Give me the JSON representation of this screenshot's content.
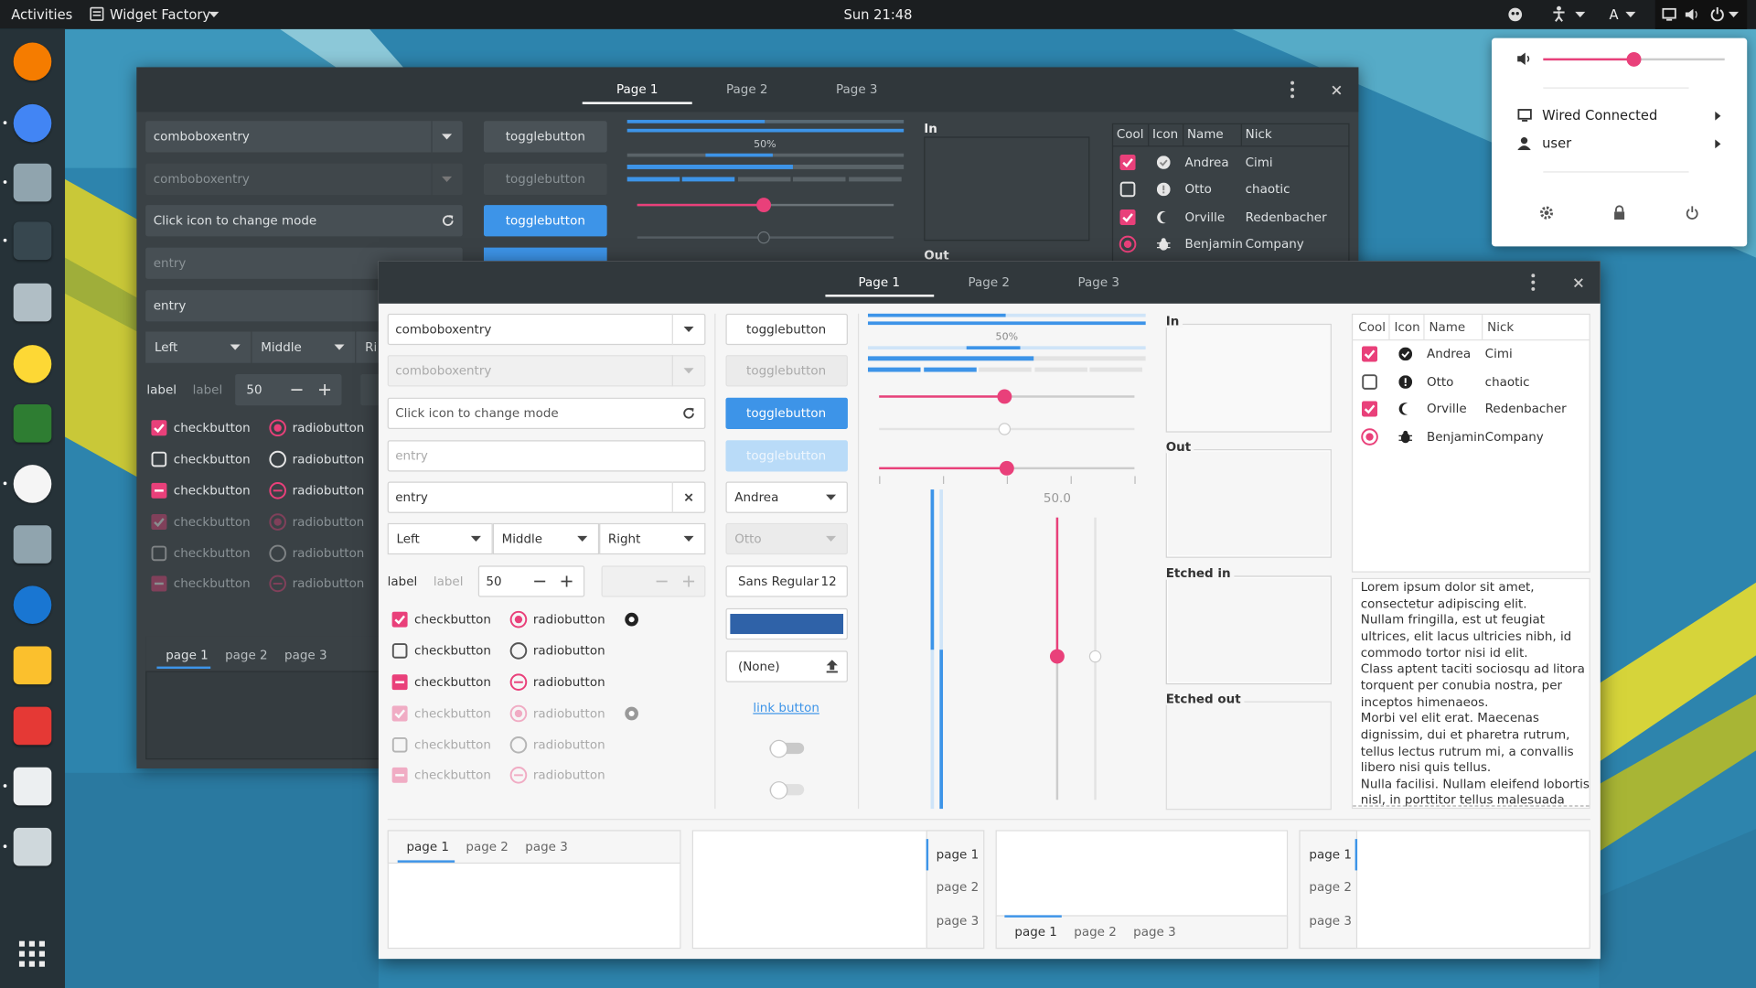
{
  "topbar": {
    "activities": "Activities",
    "app_menu": "Widget Factory",
    "clock": "Sun 21:48",
    "input_source": "A"
  },
  "system_menu": {
    "network": "Wired Connected",
    "user": "user"
  },
  "back_window": {
    "tabs": [
      "Page 1",
      "Page 2",
      "Page 3"
    ],
    "entries": [
      "comboboxentry",
      "comboboxentry",
      "Click icon to change mode",
      "entry",
      "entry"
    ],
    "combos": [
      "Left",
      "Middle",
      "Ri"
    ],
    "labels": [
      "label",
      "label"
    ],
    "spin": 50,
    "toggles": [
      "togglebutton",
      "togglebutton",
      "togglebutton"
    ],
    "progress_text": "50%",
    "frames": [
      "In",
      "Out"
    ],
    "tree": {
      "headers": [
        "Cool",
        "Icon",
        "Name",
        "Nick"
      ],
      "rows": [
        [
          "Andrea",
          "Cimi"
        ],
        [
          "Otto",
          "chaotic"
        ],
        [
          "Orville",
          "Redenbacher"
        ],
        [
          "Benjamin",
          "Company"
        ]
      ]
    },
    "checks": [
      "checkbutton",
      "checkbutton",
      "checkbutton",
      "checkbutton",
      "checkbutton",
      "checkbutton"
    ],
    "radios": [
      "radiobutton",
      "radiobutton",
      "radiobutton",
      "radiobutton",
      "radiobutton",
      "radiobutton"
    ],
    "notebook": [
      "page 1",
      "page 2",
      "page 3"
    ]
  },
  "front_window": {
    "tabs": [
      "Page 1",
      "Page 2",
      "Page 3"
    ],
    "entries": [
      "comboboxentry",
      "comboboxentry",
      "Click icon to change mode",
      "entry",
      "entry"
    ],
    "combos": [
      "Left",
      "Middle",
      "Right"
    ],
    "labels": [
      "label",
      "label"
    ],
    "spin": 50,
    "checks": [
      "checkbutton",
      "checkbutton",
      "checkbutton",
      "checkbutton",
      "checkbutton",
      "checkbutton"
    ],
    "radios": [
      "radiobutton",
      "radiobutton",
      "radiobutton",
      "radiobutton",
      "radiobutton",
      "radiobutton"
    ],
    "toggles": [
      "togglebutton",
      "togglebutton",
      "togglebutton",
      "togglebutton"
    ],
    "dropdowns": [
      "Andrea",
      "Otto"
    ],
    "font": {
      "name": "Sans Regular",
      "size": 12
    },
    "file": "(None)",
    "link": "link button",
    "progress_text": "50%",
    "scale_value": "50.0",
    "frames": [
      "In",
      "Out",
      "Etched in",
      "Etched out"
    ],
    "tree": {
      "headers": [
        "Cool",
        "Icon",
        "Name",
        "Nick"
      ],
      "rows": [
        [
          "Andrea",
          "Cimi"
        ],
        [
          "Otto",
          "chaotic"
        ],
        [
          "Orville",
          "Redenbacher"
        ],
        [
          "Benjamin",
          "Company"
        ]
      ]
    },
    "text_lines": [
      "Lorem ipsum dolor sit amet,",
      "consectetur adipiscing elit.",
      "Nullam fringilla, est ut feugiat",
      "ultrices, elit lacus ultricies nibh, id",
      "commodo tortor nisi id elit.",
      "Class aptent taciti sociosqu ad litora",
      "torquent per conubia nostra, per",
      "inceptos himenaeos.",
      "Morbi vel elit erat. Maecenas",
      "dignissim, dui et pharetra rutrum,",
      "tellus lectus rutrum mi, a convallis",
      "libero nisi quis tellus.",
      "Nulla facilisi. Nullam eleifend lobortis",
      "nisl, in porttitor tellus malesuada"
    ],
    "notebooks": [
      [
        "page 1",
        "page 2",
        "page 3"
      ],
      [
        "page 1",
        "page 2",
        "page 3"
      ],
      [
        "page 1",
        "page 2",
        "page 3"
      ],
      [
        "page 1",
        "page 2",
        "page 3"
      ]
    ]
  }
}
